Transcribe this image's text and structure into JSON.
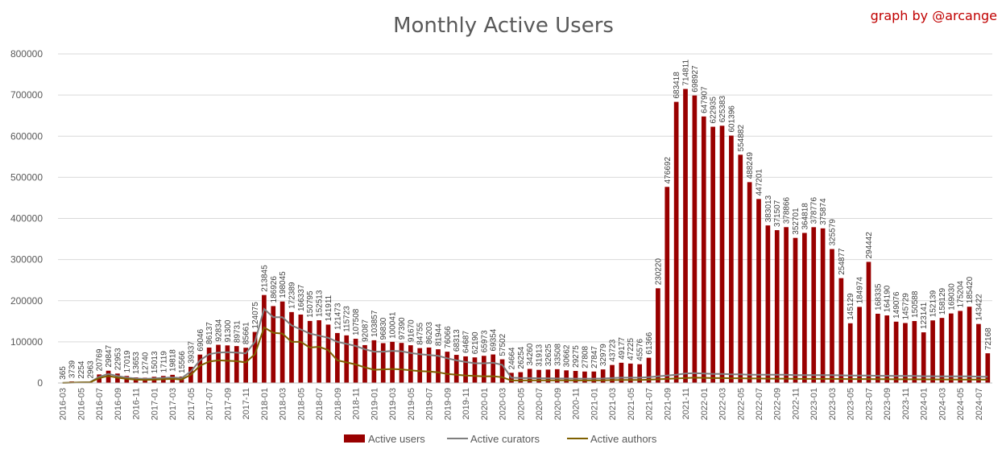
{
  "chart_data": {
    "type": "bar",
    "title": "Monthly Active Users",
    "credit": "graph by @arcange",
    "ylim": [
      0,
      800000
    ],
    "yticks": [
      "0",
      "100000",
      "200000",
      "300000",
      "400000",
      "500000",
      "600000",
      "700000",
      "800000"
    ],
    "grid": true,
    "legend_position": "bottom",
    "colors": {
      "users": "#990000",
      "curators": "#7f7f7f",
      "authors": "#7f6000"
    },
    "categories": [
      "2016-03",
      "2016-04",
      "2016-05",
      "2016-06",
      "2016-07",
      "2016-08",
      "2016-09",
      "2016-10",
      "2016-11",
      "2016-12",
      "2017-01",
      "2017-02",
      "2017-03",
      "2017-04",
      "2017-05",
      "2017-06",
      "2017-07",
      "2017-08",
      "2017-09",
      "2017-10",
      "2017-11",
      "2017-12",
      "2018-01",
      "2018-02",
      "2018-03",
      "2018-04",
      "2018-05",
      "2018-06",
      "2018-07",
      "2018-08",
      "2018-09",
      "2018-10",
      "2018-11",
      "2018-12",
      "2019-01",
      "2019-02",
      "2019-03",
      "2019-04",
      "2019-05",
      "2019-06",
      "2019-07",
      "2019-08",
      "2019-09",
      "2019-10",
      "2019-11",
      "2019-12",
      "2020-01",
      "2020-02",
      "2020-03",
      "2020-04",
      "2020-05",
      "2020-06",
      "2020-07",
      "2020-08",
      "2020-09",
      "2020-10",
      "2020-11",
      "2020-12",
      "2021-01",
      "2021-02",
      "2021-03",
      "2021-04",
      "2021-05",
      "2021-06",
      "2021-07",
      "2021-08",
      "2021-09",
      "2021-10",
      "2021-11",
      "2021-12",
      "2022-01",
      "2022-02",
      "2022-03",
      "2022-04",
      "2022-05",
      "2022-06",
      "2022-07",
      "2022-08",
      "2022-09",
      "2022-10",
      "2022-11",
      "2022-12",
      "2023-01",
      "2023-02",
      "2023-03",
      "2023-04",
      "2023-05",
      "2023-06",
      "2023-07",
      "2023-08",
      "2023-09",
      "2023-10",
      "2023-11",
      "2023-12",
      "2024-01",
      "2024-02",
      "2024-03",
      "2024-04",
      "2024-05",
      "2024-06",
      "2024-07",
      "2024-08"
    ],
    "series": [
      {
        "name": "Active users",
        "values": [
          365,
          3739,
          2254,
          2963,
          20769,
          29847,
          22953,
          17019,
          13653,
          12740,
          15013,
          17119,
          19818,
          15566,
          39337,
          69046,
          86137,
          92834,
          91300,
          89731,
          85661,
          124075,
          213845,
          186926,
          198045,
          172389,
          166337,
          150795,
          152513,
          141911,
          121473,
          115723,
          107508,
          92087,
          103857,
          96830,
          100041,
          97390,
          91670,
          84755,
          86203,
          81944,
          76066,
          68313,
          64687,
          62190,
          65973,
          69354,
          57502,
          24664,
          26254,
          34260,
          31913,
          32625,
          33508,
          30662,
          29275,
          27808,
          27847,
          32979,
          43723,
          49177,
          47225,
          45576,
          61366,
          230220,
          476692,
          683418,
          714811,
          698927,
          647907,
          622935,
          625383,
          601396,
          554882,
          488249,
          447201,
          383013,
          371507,
          378866,
          352701,
          364818,
          378776,
          375874,
          325579,
          254877,
          145129,
          184974,
          294442,
          168335,
          164190,
          149076,
          145729,
          150588,
          123141,
          152139,
          158129,
          169030,
          175204,
          185420,
          143422,
          72168
        ]
      },
      {
        "name": "Active curators",
        "values": [
          200,
          1000,
          1500,
          2000,
          15000,
          22000,
          17000,
          13000,
          11000,
          10000,
          11000,
          12500,
          13500,
          12000,
          28000,
          55000,
          70000,
          74000,
          75000,
          74000,
          72000,
          100000,
          180000,
          160000,
          160000,
          140000,
          130000,
          120000,
          115000,
          110000,
          100000,
          95000,
          90000,
          82000,
          76000,
          76000,
          78000,
          77000,
          73000,
          70000,
          68000,
          66000,
          60000,
          55000,
          51000,
          48000,
          48000,
          49000,
          44000,
          13000,
          12000,
          12000,
          11500,
          11500,
          11000,
          11000,
          10500,
          10500,
          10500,
          11000,
          12000,
          13000,
          13000,
          13000,
          14000,
          16000,
          18000,
          20000,
          23000,
          24000,
          23000,
          22000,
          22000,
          21000,
          21000,
          20000,
          20000,
          20000,
          20000,
          20000,
          19000,
          19000,
          19000,
          19000,
          19000,
          18500,
          18000,
          18000,
          18000,
          17500,
          17500,
          17000,
          17000,
          17000,
          16500,
          16500,
          16000,
          16000,
          16000,
          16000,
          15500,
          15000
        ]
      },
      {
        "name": "Active authors",
        "values": [
          150,
          800,
          1200,
          1500,
          12000,
          17000,
          13000,
          10000,
          8000,
          7500,
          8000,
          9000,
          10000,
          8500,
          20000,
          42000,
          52000,
          55000,
          54000,
          53000,
          50000,
          70000,
          135000,
          122000,
          120000,
          100000,
          100000,
          86000,
          88000,
          80000,
          55000,
          50000,
          45000,
          38000,
          32000,
          33000,
          34000,
          33000,
          31000,
          29000,
          28000,
          26000,
          22000,
          20000,
          18000,
          17000,
          16000,
          16500,
          14000,
          6000,
          6000,
          6500,
          6500,
          6500,
          6300,
          6200,
          6000,
          6000,
          6000,
          6200,
          7000,
          7500,
          7500,
          7500,
          8000,
          9000,
          10000,
          11000,
          12000,
          13000,
          12500,
          12000,
          12000,
          11500,
          11500,
          11000,
          11000,
          10500,
          10500,
          10500,
          10000,
          10000,
          10000,
          10000,
          10000,
          9800,
          9500,
          9500,
          9500,
          9300,
          9200,
          9000,
          9000,
          9000,
          8800,
          8800,
          8600,
          8600,
          8500,
          8500,
          8300,
          8000
        ]
      }
    ]
  }
}
